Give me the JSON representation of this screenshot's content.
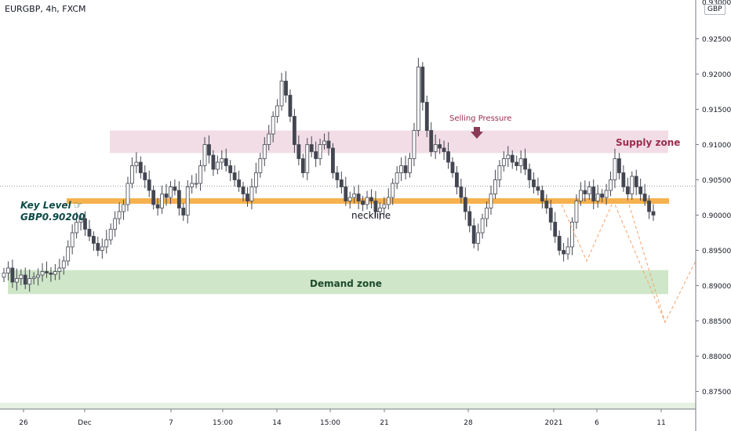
{
  "header": {
    "symbol": "EURGBP, 4h, FXCM",
    "currency_badge": "GBP"
  },
  "annotations": {
    "key_level_line1": "Key Level",
    "key_level_line2": "GBP0.90200",
    "key_level_icon": "pointing-hand-icon",
    "neckline": "neckline",
    "supply_zone": "Supply zone",
    "demand_zone": "Demand zone",
    "selling_pressure": "Selling Pressure"
  },
  "colors": {
    "up_candle": "#ffffff",
    "down_candle": "#434651",
    "wick": "#434651",
    "key_level": "#f6b24e",
    "supply_zone": "#f2dde6",
    "demand_zone": "#cfe6c8",
    "projection": "#f5a36b",
    "arrow": "#8a3a56"
  },
  "chart_data": {
    "type": "candlestick",
    "y_axis": {
      "ticks": [
        "0.92500",
        "0.92000",
        "0.91500",
        "0.91000",
        "0.90500",
        "0.90000",
        "0.89500",
        "0.89000",
        "0.88500",
        "0.88000",
        "0.87500"
      ],
      "top_value_partial": "0.93000",
      "ylim": [
        0.8725,
        0.9305
      ]
    },
    "x_axis": {
      "ticks": [
        "26",
        "Dec",
        "7",
        "15:00",
        "14",
        "15:00",
        "21",
        "28",
        "2021",
        "6",
        "11"
      ]
    },
    "key_level": 0.902,
    "supply_zone": [
      0.9088,
      0.912
    ],
    "demand_zone": [
      0.8888,
      0.8922
    ],
    "crosshair_price": 0.9041,
    "projection_path": [
      [
        0.9015,
        "start"
      ],
      [
        0.8935,
        "low1"
      ],
      [
        0.902,
        "mid"
      ],
      [
        0.8848,
        "low2"
      ],
      [
        0.8935,
        "end"
      ]
    ],
    "candles_approx": [
      0.8918,
      0.8925,
      0.8905,
      0.891,
      0.8915,
      0.8902,
      0.891,
      0.8912,
      0.8915,
      0.892,
      0.8918,
      0.8916,
      0.892,
      0.8925,
      0.8935,
      0.8955,
      0.8975,
      0.899,
      0.8995,
      0.898,
      0.897,
      0.896,
      0.895,
      0.8955,
      0.8965,
      0.898,
      0.8995,
      0.9005,
      0.9015,
      0.9045,
      0.907,
      0.9075,
      0.906,
      0.905,
      0.9035,
      0.9015,
      0.901,
      0.903,
      0.9025,
      0.904,
      0.9035,
      0.901,
      0.9,
      0.904,
      0.9045,
      0.9045,
      0.907,
      0.91,
      0.9085,
      0.9065,
      0.9075,
      0.908,
      0.907,
      0.906,
      0.905,
      0.904,
      0.903,
      0.902,
      0.904,
      0.906,
      0.908,
      0.91,
      0.9115,
      0.914,
      0.9155,
      0.919,
      0.917,
      0.914,
      0.91,
      0.908,
      0.906,
      0.91,
      0.909,
      0.908,
      0.91,
      0.9105,
      0.9095,
      0.906,
      0.905,
      0.904,
      0.902,
      0.9025,
      0.903,
      0.902,
      0.9015,
      0.9025,
      0.902,
      0.9005,
      0.901,
      0.9015,
      0.9025,
      0.9045,
      0.906,
      0.907,
      0.906,
      0.908,
      0.912,
      0.921,
      0.916,
      0.912,
      0.909,
      0.91,
      0.9095,
      0.909,
      0.9075,
      0.906,
      0.904,
      0.9025,
      0.9005,
      0.8985,
      0.896,
      0.8975,
      0.8995,
      0.901,
      0.903,
      0.905,
      0.907,
      0.908,
      0.9085,
      0.9075,
      0.907,
      0.908,
      0.9065,
      0.905,
      0.904,
      0.9035,
      0.902,
      0.901,
      0.899,
      0.897,
      0.895,
      0.8945,
      0.8955,
      0.899,
      0.902,
      0.9035,
      0.903,
      0.904,
      0.902,
      0.903,
      0.9025,
      0.9035,
      0.905,
      0.908,
      0.906,
      0.904,
      0.903,
      0.9055,
      0.904,
      0.903,
      0.902,
      0.9005,
      0.9
    ]
  }
}
